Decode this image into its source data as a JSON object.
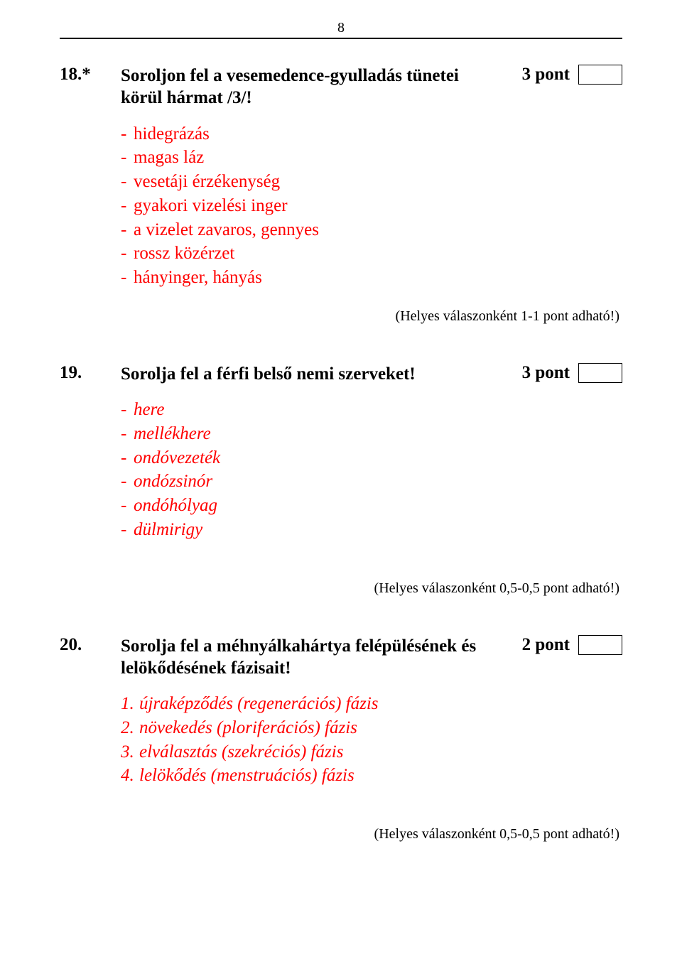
{
  "pageNumber": "8",
  "q18": {
    "num": "18.*",
    "titleLine1": "Soroljon fel a vesemedence-gyulladás tünetei",
    "titleLine2": "körül hármat /3/!",
    "points": "3 pont",
    "answers": [
      "hidegrázás",
      "magas láz",
      "vesetáji érzékenység",
      "gyakori vizelési inger",
      "a vizelet zavaros, gennyes",
      "rossz közérzet",
      "hányinger, hányás"
    ],
    "note": "(Helyes válaszonként 1-1 pont adható!)"
  },
  "q19": {
    "num": "19.",
    "title": "Sorolja fel a férfi belső nemi szerveket!",
    "points": "3 pont",
    "answers": [
      "here",
      "mellékhere",
      "ondóvezeték",
      "ondózsinór",
      "ondóhólyag",
      "dülmirigy"
    ],
    "note": "(Helyes válaszonként 0,5-0,5 pont adható!)"
  },
  "q20": {
    "num": "20.",
    "titleLine1": "Sorolja fel a méhnyálkahártya felépülésének és",
    "titleLine2": "lelökődésének fázisait!",
    "points": "2 pont",
    "answers": [
      {
        "n": "1.",
        "t": "újraképződés (regenerációs) fázis"
      },
      {
        "n": "2.",
        "t": "növekedés (ploriferációs) fázis"
      },
      {
        "n": "3.",
        "t": "elválasztás (szekréciós) fázis"
      },
      {
        "n": "4.",
        "t": "lelökődés (menstruációs)  fázis"
      }
    ],
    "note": "(Helyes válaszonként 0,5-0,5 pont adható!)"
  },
  "bullet": "-"
}
